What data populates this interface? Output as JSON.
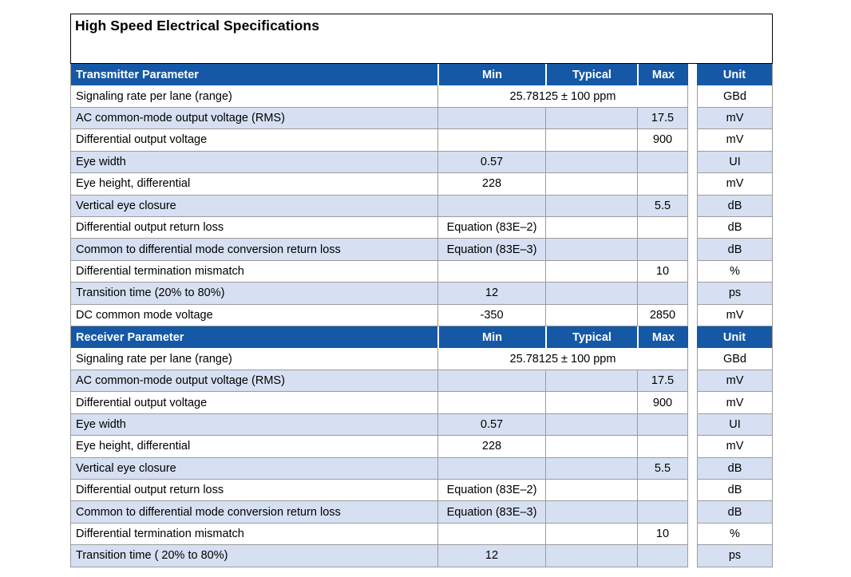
{
  "title": "High Speed Electrical Specifications",
  "columns": {
    "min": "Min",
    "typical": "Typical",
    "max": "Max",
    "unit": "Unit"
  },
  "colors": {
    "header_bg": "#1558a6",
    "header_text": "#ffffff",
    "row_alt_bg": "#d6e0f2",
    "grid_border": "#9c9c9c",
    "title_border": "#000000"
  },
  "sections": [
    {
      "header": "Transmitter Parameter",
      "signaling": {
        "param": "Signaling rate per lane (range)",
        "value": "25.78125 ± 100 ppm",
        "unit": "GBd"
      },
      "rows": [
        {
          "param": "AC common-mode output voltage (RMS)",
          "min": "",
          "typical": "",
          "max": "17.5",
          "unit": "mV"
        },
        {
          "param": "Differential output voltage",
          "min": "",
          "typical": "",
          "max": "900",
          "unit": "mV"
        },
        {
          "param": "Eye width",
          "min": "0.57",
          "typical": "",
          "max": "",
          "unit": "UI"
        },
        {
          "param": "Eye height, differential",
          "min": "228",
          "typical": "",
          "max": "",
          "unit": "mV"
        },
        {
          "param": "Vertical eye closure",
          "min": "",
          "typical": "",
          "max": "5.5",
          "unit": "dB"
        },
        {
          "param": "Differential output return loss",
          "min": "Equation (83E–2)",
          "typical": "",
          "max": "",
          "unit": "dB"
        },
        {
          "param": "Common to differential mode conversion return loss",
          "min": "Equation (83E–3)",
          "typical": "",
          "max": "",
          "unit": "dB"
        },
        {
          "param": "Differential termination mismatch",
          "min": "",
          "typical": "",
          "max": "10",
          "unit": "%"
        },
        {
          "param": "Transition time (20% to 80%)",
          "min": "12",
          "typical": "",
          "max": "",
          "unit": "ps"
        },
        {
          "param": "DC common mode voltage",
          "min": "-350",
          "typical": "",
          "max": "2850",
          "unit": "mV"
        }
      ]
    },
    {
      "header": "Receiver Parameter",
      "signaling": {
        "param": "Signaling rate per lane (range)",
        "value": "25.78125 ± 100 ppm",
        "unit": "GBd"
      },
      "rows": [
        {
          "param": "AC common-mode output voltage (RMS)",
          "min": "",
          "typical": "",
          "max": "17.5",
          "unit": "mV"
        },
        {
          "param": "Differential output voltage",
          "min": "",
          "typical": "",
          "max": "900",
          "unit": "mV"
        },
        {
          "param": "Eye width",
          "min": "0.57",
          "typical": "",
          "max": "",
          "unit": "UI"
        },
        {
          "param": "Eye height, differential",
          "min": "228",
          "typical": "",
          "max": "",
          "unit": "mV"
        },
        {
          "param": "Vertical eye closure",
          "min": "",
          "typical": "",
          "max": "5.5",
          "unit": "dB"
        },
        {
          "param": "Differential output return loss",
          "min": "Equation (83E–2)",
          "typical": "",
          "max": "",
          "unit": "dB"
        },
        {
          "param": "Common to differential mode conversion return loss",
          "min": "Equation (83E–3)",
          "typical": "",
          "max": "",
          "unit": "dB"
        },
        {
          "param": "Differential termination mismatch",
          "min": "",
          "typical": "",
          "max": "10",
          "unit": "%"
        },
        {
          "param": "Transition time ( 20% to 80%)",
          "min": "12",
          "typical": "",
          "max": "",
          "unit": "ps"
        }
      ]
    }
  ]
}
